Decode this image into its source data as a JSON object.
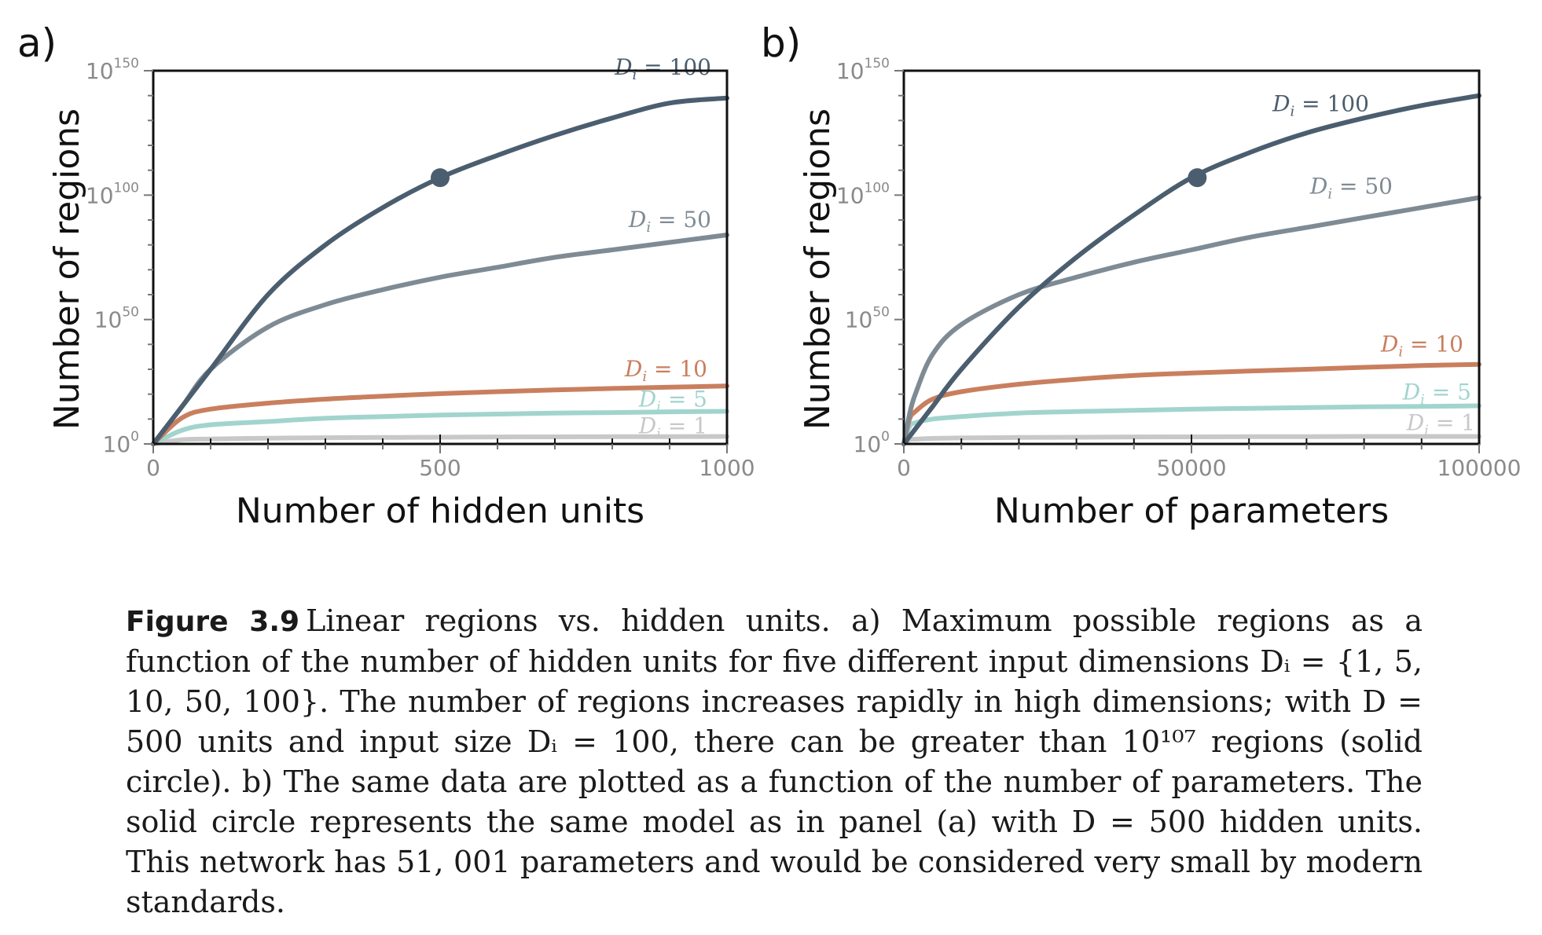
{
  "panels": [
    {
      "label": "a)",
      "xlabel": "Number of hidden units",
      "ylabel": "Number of regions",
      "xticks": [
        "0",
        "500",
        "1000"
      ],
      "yticks": [
        {
          "base": "10",
          "exp": "0"
        },
        {
          "base": "10",
          "exp": "50"
        },
        {
          "base": "10",
          "exp": "100"
        },
        {
          "base": "10",
          "exp": "150"
        }
      ],
      "marker_label": "D = 500, Di = 100"
    },
    {
      "label": "b)",
      "xlabel": "Number of parameters",
      "ylabel": "Number of regions",
      "xticks": [
        "0",
        "50000",
        "100000"
      ],
      "yticks": [
        {
          "base": "10",
          "exp": "0"
        },
        {
          "base": "10",
          "exp": "50"
        },
        {
          "base": "10",
          "exp": "100"
        },
        {
          "base": "10",
          "exp": "150"
        }
      ],
      "marker_label": "51,001 parameters, Di = 100"
    }
  ],
  "series_labels": [
    "Di = 1",
    "Di = 5",
    "Di = 10",
    "Di = 50",
    "Di = 100"
  ],
  "chart_data": [
    {
      "type": "line",
      "title": "",
      "xlabel": "Number of hidden units",
      "ylabel": "Number of regions",
      "xlim": [
        0,
        1000
      ],
      "ylim_log10": [
        0,
        150
      ],
      "yscale": "log",
      "grid": false,
      "legend": "inline labels at right end of each curve",
      "x": [
        0,
        50,
        100,
        200,
        300,
        400,
        500,
        600,
        700,
        800,
        900,
        1000
      ],
      "series": [
        {
          "name": "Di = 1",
          "color": "#c8c8c8",
          "log10_values": [
            0,
            1.7,
            2.0,
            2.3,
            2.5,
            2.6,
            2.7,
            2.8,
            2.85,
            2.9,
            2.95,
            3.0
          ]
        },
        {
          "name": "Di = 5",
          "color": "#a2d4ce",
          "log10_values": [
            0,
            5.5,
            7.7,
            9.0,
            10.3,
            11.0,
            11.6,
            12.0,
            12.4,
            12.6,
            12.9,
            13.1
          ]
        },
        {
          "name": "Di = 10",
          "color": "#c97f5e",
          "log10_values": [
            0,
            10.5,
            14.0,
            16.4,
            18.0,
            19.2,
            20.2,
            21.0,
            21.7,
            22.3,
            22.8,
            23.3
          ]
        },
        {
          "name": "Di = 50",
          "color": "#7f8b94",
          "log10_values": [
            0,
            15.0,
            30.0,
            47.0,
            56.0,
            62.0,
            67.0,
            71.0,
            75.0,
            78.0,
            81.0,
            84.0
          ]
        },
        {
          "name": "Di = 100",
          "color": "#4b5e6f",
          "log10_values": [
            0,
            15.0,
            30.0,
            60.0,
            80.0,
            95.0,
            107.0,
            116.0,
            124.0,
            131.0,
            137.0,
            139.0
          ]
        }
      ],
      "annotations": [
        {
          "type": "marker",
          "x": 500,
          "log10_y": 107,
          "series": "Di = 100"
        }
      ]
    },
    {
      "type": "line",
      "title": "",
      "xlabel": "Number of parameters",
      "ylabel": "Number of regions",
      "xlim": [
        0,
        100000
      ],
      "ylim_log10": [
        0,
        150
      ],
      "yscale": "log",
      "grid": false,
      "legend": "inline labels at right end of each curve",
      "x": [
        0,
        1000,
        2000,
        5000,
        10000,
        20000,
        30000,
        40000,
        50000,
        60000,
        70000,
        80000,
        90000,
        100000
      ],
      "series": [
        {
          "name": "Di = 1",
          "color": "#c8c8c8",
          "log10_values": [
            0,
            1.7,
            1.9,
            2.2,
            2.4,
            2.6,
            2.7,
            2.8,
            2.85,
            2.9,
            2.95,
            3.0,
            3.0,
            3.0
          ]
        },
        {
          "name": "Di = 5",
          "color": "#a2d4ce",
          "log10_values": [
            0,
            7.0,
            8.5,
            10.0,
            11.0,
            12.4,
            13.0,
            13.5,
            14.0,
            14.3,
            14.6,
            14.9,
            15.1,
            15.3
          ]
        },
        {
          "name": "Di = 10",
          "color": "#c97f5e",
          "log10_values": [
            0,
            10.0,
            13.0,
            18.0,
            21.0,
            24.0,
            26.0,
            27.5,
            28.5,
            29.3,
            30.0,
            30.8,
            31.5,
            32.0
          ]
        },
        {
          "name": "Di = 50",
          "color": "#7f8b94",
          "log10_values": [
            0,
            12.0,
            20.0,
            36.0,
            48.0,
            60.0,
            67.0,
            73.0,
            78.0,
            83.0,
            87.0,
            91.0,
            95.0,
            99.0
          ]
        },
        {
          "name": "Di = 100",
          "color": "#4b5e6f",
          "log10_values": [
            0,
            3.0,
            6.0,
            15.0,
            30.0,
            55.0,
            75.0,
            92.0,
            107.0,
            117.0,
            125.0,
            131.0,
            136.0,
            140.0
          ]
        }
      ],
      "annotations": [
        {
          "type": "marker",
          "x": 51001,
          "log10_y": 107,
          "series": "Di = 100"
        }
      ]
    }
  ],
  "caption": {
    "fig_num": "Figure 3.9",
    "text": "Linear regions vs. hidden units. a) Maximum possible regions as a function of the number of hidden units for five different input dimensions Dᵢ = {1, 5, 10, 50, 100}. The number of regions increases rapidly in high dimensions; with D = 500 units and input size Dᵢ = 100, there can be greater than 10¹⁰⁷ regions (solid circle). b) The same data are plotted as a function of the number of parameters. The solid circle represents the same model as in panel (a) with D = 500 hidden units. This network has 51, 001 parameters and would be considered very small by modern standards."
  }
}
